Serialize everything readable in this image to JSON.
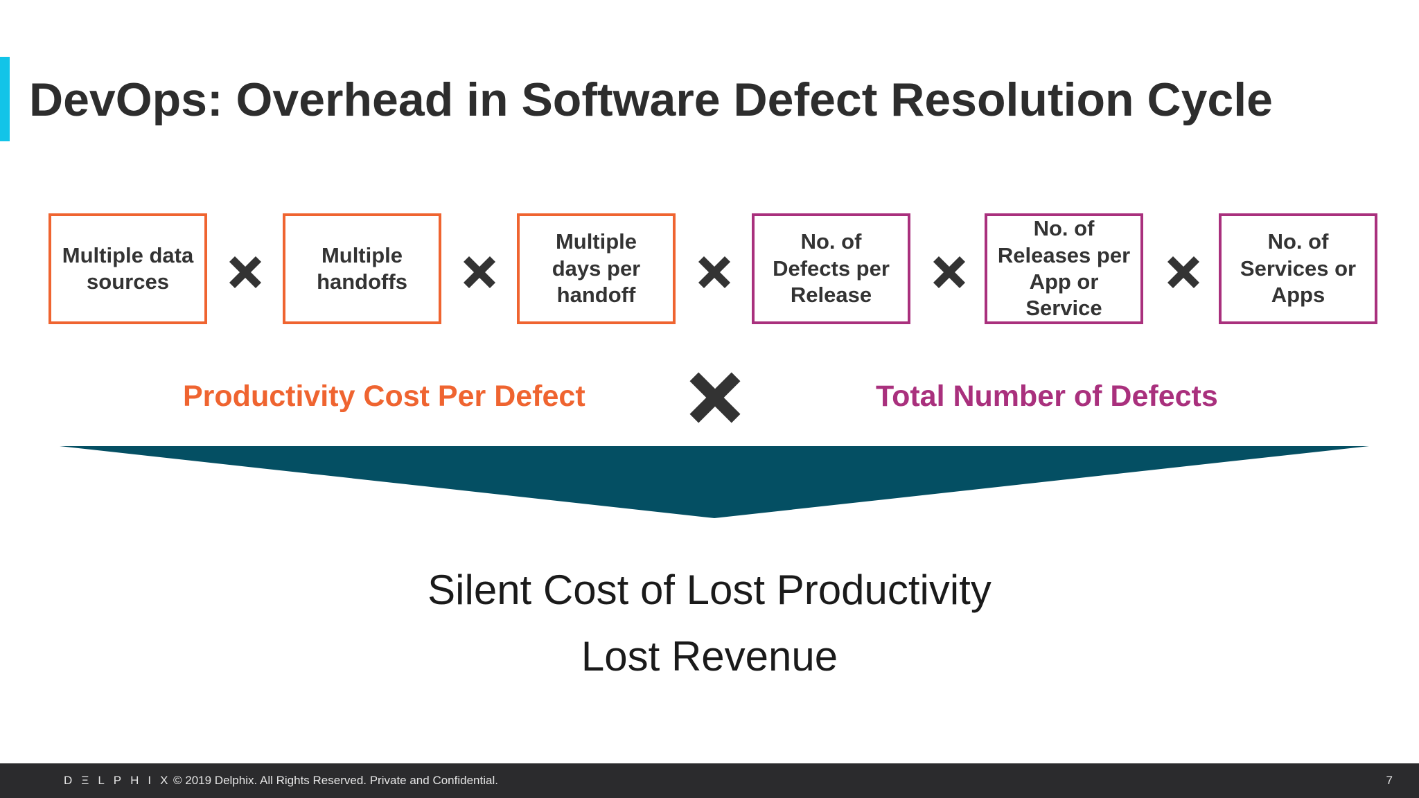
{
  "colors": {
    "accent": "#12c4e8",
    "orange": "#ef6430",
    "magenta": "#a9307d",
    "dark_x": "#333333",
    "funnel": "#044f63",
    "footer_bg": "#2b2b2d"
  },
  "title": "DevOps: Overhead in Software Defect Resolution Cycle",
  "factors": [
    {
      "label": "Multiple data\nsources",
      "group": "orange"
    },
    {
      "label": "Multiple\nhandoffs",
      "group": "orange"
    },
    {
      "label": "Multiple\ndays per\nhandoff",
      "group": "orange"
    },
    {
      "label": "No. of\nDefects per\nRelease",
      "group": "magenta"
    },
    {
      "label": "No. of\nReleases per\nApp or\nService",
      "group": "magenta"
    },
    {
      "label": "No. of\nServices or\nApps",
      "group": "magenta"
    }
  ],
  "groups": {
    "productivity_label": "Productivity Cost Per Defect",
    "defects_label": "Total Number of Defects"
  },
  "results": {
    "line1": "Silent Cost of Lost Productivity",
    "line2": "Lost Revenue"
  },
  "footer": {
    "brand": "DΞLPHIX",
    "copyright": "© 2019 Delphix. All Rights Reserved. Private and Confidential.",
    "page_number": "7"
  },
  "icons": {
    "multiply": "multiply-icon",
    "funnel": "funnel-arrow-icon"
  }
}
